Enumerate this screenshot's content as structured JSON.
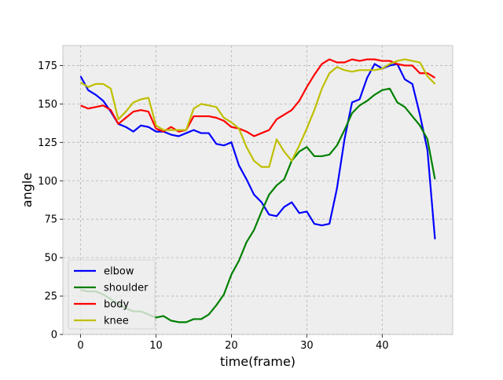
{
  "chart_data": {
    "type": "line",
    "title": "",
    "xlabel": "time(frame)",
    "ylabel": "angle",
    "xlim": [
      -2.35,
      49.35
    ],
    "ylim": [
      0,
      188
    ],
    "xticks": [
      0,
      10,
      20,
      30,
      40
    ],
    "yticks": [
      0,
      25,
      50,
      75,
      100,
      125,
      150,
      175
    ],
    "grid": true,
    "background": "#eeeeee",
    "legend_position": "lower-left",
    "series": [
      {
        "name": "elbow",
        "color": "#0000ff",
        "x": [
          0,
          1,
          2,
          3,
          4,
          5,
          6,
          7,
          8,
          9,
          10,
          11,
          12,
          13,
          14,
          15,
          16,
          17,
          18,
          19,
          20,
          21,
          22,
          23,
          24,
          25,
          26,
          27,
          28,
          29,
          30,
          31,
          32,
          33,
          34,
          35,
          36,
          37,
          38,
          39,
          40,
          41,
          42,
          43,
          44,
          45,
          46,
          47
        ],
        "y": [
          168,
          159,
          156,
          152,
          145,
          137,
          135,
          132,
          136,
          135,
          132,
          132,
          130,
          129,
          131,
          133,
          131,
          131,
          124,
          123,
          125,
          110,
          101,
          91,
          86,
          78,
          77,
          83,
          86,
          79,
          80,
          72,
          71,
          72,
          95,
          127,
          151,
          153,
          167,
          176,
          173,
          175,
          176,
          166,
          163,
          143,
          120,
          62
        ]
      },
      {
        "name": "shoulder",
        "color": "#008000",
        "x": [
          0,
          1,
          2,
          3,
          4,
          5,
          6,
          7,
          8,
          9,
          10,
          11,
          12,
          13,
          14,
          15,
          16,
          17,
          18,
          19,
          20,
          21,
          22,
          23,
          24,
          25,
          26,
          27,
          28,
          29,
          30,
          31,
          32,
          33,
          34,
          35,
          36,
          37,
          38,
          39,
          40,
          41,
          42,
          43,
          44,
          45,
          46,
          47
        ],
        "y": [
          29,
          28,
          28,
          26,
          23,
          20,
          17,
          15,
          15,
          13,
          11,
          12,
          9,
          8,
          8,
          10,
          10,
          13,
          19,
          26,
          39,
          48,
          60,
          68,
          80,
          91,
          97,
          101,
          113,
          119,
          122,
          116,
          116,
          117,
          123,
          133,
          144,
          149,
          152,
          156,
          159,
          160,
          151,
          148,
          142,
          136,
          127,
          101
        ]
      },
      {
        "name": "body",
        "color": "#ff0000",
        "x": [
          0,
          1,
          2,
          3,
          4,
          5,
          6,
          7,
          8,
          9,
          10,
          11,
          12,
          13,
          14,
          15,
          16,
          17,
          18,
          19,
          20,
          21,
          22,
          23,
          24,
          25,
          26,
          27,
          28,
          29,
          30,
          31,
          32,
          33,
          34,
          35,
          36,
          37,
          38,
          39,
          40,
          41,
          42,
          43,
          44,
          45,
          46,
          47
        ],
        "y": [
          149,
          147,
          148,
          149,
          146,
          137,
          141,
          145,
          146,
          145,
          134,
          132,
          135,
          132,
          133,
          142,
          142,
          142,
          141,
          139,
          135,
          134,
          132,
          129,
          131,
          133,
          140,
          143,
          146,
          152,
          161,
          169,
          176,
          179,
          177,
          177,
          179,
          178,
          179,
          179,
          178,
          178,
          176,
          175,
          175,
          170,
          170,
          167
        ]
      },
      {
        "name": "knee",
        "color": "#bfbf00",
        "x": [
          0,
          1,
          2,
          3,
          4,
          5,
          6,
          7,
          8,
          9,
          10,
          11,
          12,
          13,
          14,
          15,
          16,
          17,
          18,
          19,
          20,
          21,
          22,
          23,
          24,
          25,
          26,
          27,
          28,
          29,
          30,
          31,
          32,
          33,
          34,
          35,
          36,
          37,
          38,
          39,
          40,
          41,
          42,
          43,
          44,
          45,
          46,
          47
        ],
        "y": [
          164,
          161,
          163,
          163,
          160,
          140,
          145,
          151,
          153,
          154,
          136,
          133,
          133,
          133,
          133,
          147,
          150,
          149,
          148,
          141,
          138,
          134,
          122,
          113,
          109,
          109,
          127,
          119,
          113,
          123,
          134,
          146,
          160,
          170,
          174,
          172,
          171,
          172,
          172,
          172,
          173,
          176,
          178,
          179,
          178,
          177,
          168,
          163
        ]
      }
    ]
  }
}
